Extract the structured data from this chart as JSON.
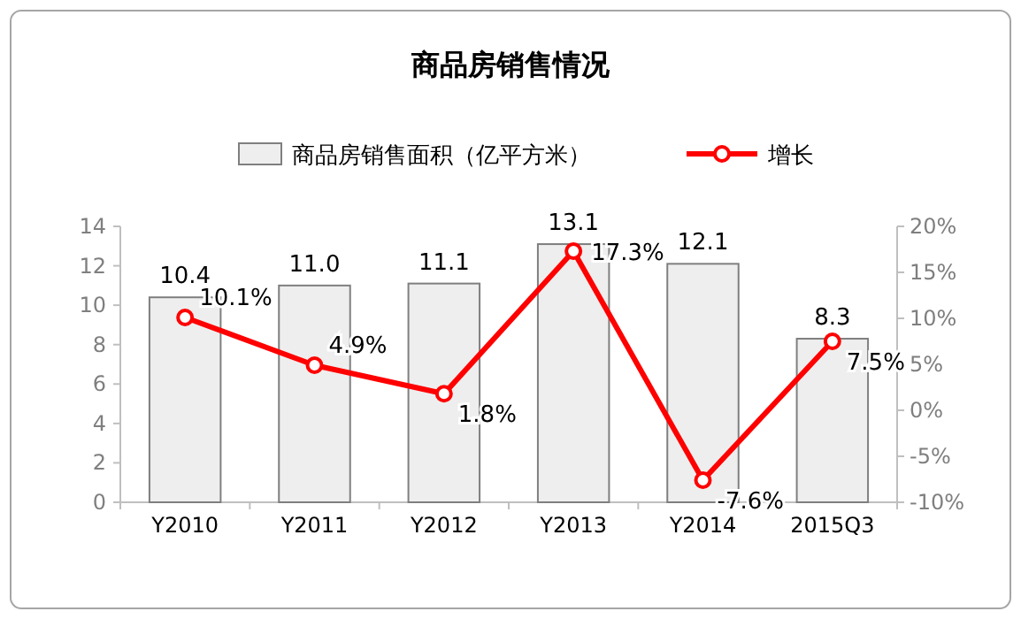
{
  "chart_data": {
    "type": "bar",
    "title": "商品房销售情况",
    "categories": [
      "Y2010",
      "Y2011",
      "Y2012",
      "Y2013",
      "Y2014",
      "2015Q3"
    ],
    "series": [
      {
        "name": "商品房销售面积（亿平方米）",
        "color": "#eeeeee",
        "values": [
          10.4,
          11.0,
          11.1,
          13.1,
          12.1,
          8.3
        ],
        "value_labels": [
          "10.4",
          "11.0",
          "11.1",
          "13.1",
          "12.1",
          "8.3"
        ]
      },
      {
        "name": "增长",
        "type": "line",
        "axis": "y2",
        "color": "#ff0000",
        "values": [
          10.1,
          4.9,
          1.8,
          17.3,
          -7.6,
          7.5
        ],
        "value_labels": [
          "10.1%",
          "4.9%",
          "1.8%",
          "17.3%",
          "-7.6%",
          "7.5%"
        ]
      }
    ],
    "ylim": [
      0,
      14
    ],
    "yticks": [
      0,
      2,
      4,
      6,
      8,
      10,
      12,
      14
    ],
    "y2lim": [
      -10,
      20
    ],
    "y2ticks": [
      {
        "value": -10,
        "label": "-10%"
      },
      {
        "value": -5,
        "label": "-5%"
      },
      {
        "value": 0,
        "label": "0%"
      },
      {
        "value": 5,
        "label": "5%"
      },
      {
        "value": 10,
        "label": "10%"
      },
      {
        "value": 15,
        "label": "15%"
      },
      {
        "value": 20,
        "label": "20%"
      }
    ],
    "marker": "circle",
    "legend": "top",
    "grid": false
  }
}
